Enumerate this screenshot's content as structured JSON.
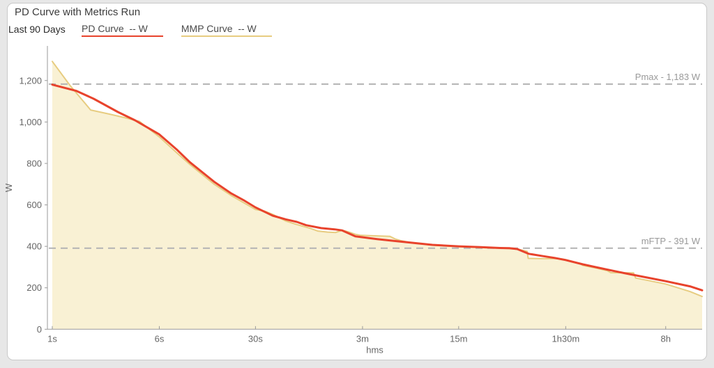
{
  "header": {
    "title": "PD Curve with Metrics Run",
    "range_label": "Last 90 Days",
    "legend": [
      {
        "id": "pd-curve",
        "label": "PD Curve  -- W",
        "color": "#e8432c"
      },
      {
        "id": "mmp-curve",
        "label": "MMP Curve  -- W",
        "color": "#e7cc80"
      }
    ]
  },
  "chart_data": {
    "type": "line",
    "title": "PD Curve with Metrics Run",
    "subtitle": "Last 90 Days",
    "xlabel": "hms",
    "ylabel": "W",
    "x_scale": "log-seconds",
    "x_domain_seconds": [
      1,
      53000
    ],
    "y_domain": [
      0,
      1367
    ],
    "grid": false,
    "legend_position": "top",
    "axis_color": "#999999",
    "tick_label_color": "#666666",
    "ref_line_color": "#b3b3b3",
    "ref_label_color": "#999999",
    "y_ticks": [
      {
        "value": 0,
        "label": "0"
      },
      {
        "value": 200,
        "label": "200"
      },
      {
        "value": 400,
        "label": "400"
      },
      {
        "value": 600,
        "label": "600"
      },
      {
        "value": 800,
        "label": "800"
      },
      {
        "value": 1000,
        "label": "1,000"
      },
      {
        "value": 1200,
        "label": "1,200"
      }
    ],
    "x_ticks": [
      {
        "seconds": 1,
        "label": "1s"
      },
      {
        "seconds": 6,
        "label": "6s"
      },
      {
        "seconds": 30,
        "label": "30s"
      },
      {
        "seconds": 180,
        "label": "3m"
      },
      {
        "seconds": 900,
        "label": "15m"
      },
      {
        "seconds": 5400,
        "label": "1h30m"
      },
      {
        "seconds": 28800,
        "label": "8h"
      }
    ],
    "reference_lines": [
      {
        "name": "pmax",
        "label": "Pmax - 1,183 W",
        "value": 1183
      },
      {
        "name": "mftp",
        "label": "mFTP - 391 W",
        "value": 391
      }
    ],
    "series": [
      {
        "name": "MMP Curve",
        "unit": "W",
        "color": "#e7cc80",
        "stroke_width": 2,
        "fill": "#f9f1d4",
        "points": [
          [
            1,
            1292
          ],
          [
            1.35,
            1175
          ],
          [
            1.9,
            1058
          ],
          [
            2.6,
            1038
          ],
          [
            3.4,
            1020
          ],
          [
            4.3,
            1003
          ],
          [
            6,
            928
          ],
          [
            8,
            852
          ],
          [
            10,
            795
          ],
          [
            15,
            700
          ],
          [
            20,
            645
          ],
          [
            25,
            608
          ],
          [
            30,
            578
          ],
          [
            35,
            570
          ],
          [
            40,
            554
          ],
          [
            50,
            522
          ],
          [
            60,
            505
          ],
          [
            75,
            487
          ],
          [
            85,
            474
          ],
          [
            100,
            469
          ],
          [
            115,
            467
          ],
          [
            128,
            478
          ],
          [
            145,
            468
          ],
          [
            160,
            458
          ],
          [
            175,
            453
          ],
          [
            240,
            450
          ],
          [
            285,
            448
          ],
          [
            310,
            436
          ],
          [
            340,
            428
          ],
          [
            420,
            416
          ],
          [
            540,
            408
          ],
          [
            600,
            405
          ],
          [
            900,
            399
          ],
          [
            1300,
            394
          ],
          [
            1800,
            391
          ],
          [
            2400,
            387
          ],
          [
            2830,
            376
          ],
          [
            2880,
            342
          ],
          [
            3600,
            341
          ],
          [
            4260,
            341
          ],
          [
            5000,
            340
          ],
          [
            5400,
            336
          ],
          [
            6800,
            318
          ],
          [
            7200,
            308
          ],
          [
            9000,
            295
          ],
          [
            10800,
            283
          ],
          [
            11500,
            273
          ],
          [
            16800,
            272
          ],
          [
            17400,
            247
          ],
          [
            21600,
            235
          ],
          [
            28800,
            218
          ],
          [
            43200,
            182
          ],
          [
            53000,
            158
          ]
        ]
      },
      {
        "name": "PD Curve",
        "unit": "W",
        "color": "#e8432c",
        "stroke_width": 3,
        "fill": null,
        "points": [
          [
            1,
            1180
          ],
          [
            1.5,
            1150
          ],
          [
            2,
            1112
          ],
          [
            3,
            1048
          ],
          [
            4,
            1008
          ],
          [
            6,
            940
          ],
          [
            8,
            868
          ],
          [
            10,
            806
          ],
          [
            15,
            712
          ],
          [
            20,
            655
          ],
          [
            25,
            620
          ],
          [
            30,
            588
          ],
          [
            40,
            548
          ],
          [
            50,
            530
          ],
          [
            60,
            518
          ],
          [
            70,
            502
          ],
          [
            90,
            488
          ],
          [
            113,
            482
          ],
          [
            128,
            477
          ],
          [
            160,
            448
          ],
          [
            230,
            435
          ],
          [
            330,
            424
          ],
          [
            580,
            407
          ],
          [
            900,
            400
          ],
          [
            1300,
            396
          ],
          [
            1800,
            392
          ],
          [
            2100,
            391
          ],
          [
            2400,
            387
          ],
          [
            2900,
            364
          ],
          [
            3600,
            354
          ],
          [
            4500,
            344
          ],
          [
            5400,
            334
          ],
          [
            7200,
            313
          ],
          [
            10800,
            288
          ],
          [
            14400,
            271
          ],
          [
            21600,
            248
          ],
          [
            28800,
            232
          ],
          [
            43200,
            207
          ],
          [
            53000,
            188
          ]
        ]
      }
    ]
  }
}
